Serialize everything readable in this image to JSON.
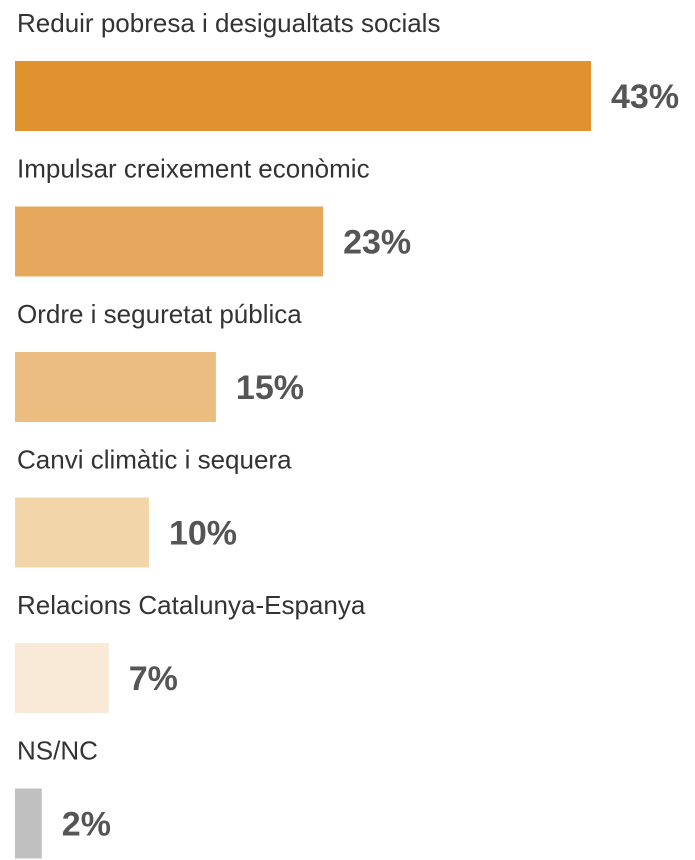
{
  "chart_data": {
    "type": "bar",
    "orientation": "horizontal",
    "categories": [
      "Reduir pobresa i desigualtats socials",
      "Impulsar creixement econòmic",
      "Ordre i seguretat pública",
      "Canvi climàtic i sequera",
      "Relacions Catalunya-Espanya",
      "NS/NC"
    ],
    "values": [
      43,
      23,
      15,
      10,
      7,
      2
    ],
    "value_labels": [
      "43%",
      "23%",
      "15%",
      "10%",
      "7%",
      "2%"
    ],
    "colors": [
      "#e0922f",
      "#e6a85c",
      "#ecbd80",
      "#f3d5aa",
      "#f9ead7",
      "#c0c0c0"
    ]
  }
}
